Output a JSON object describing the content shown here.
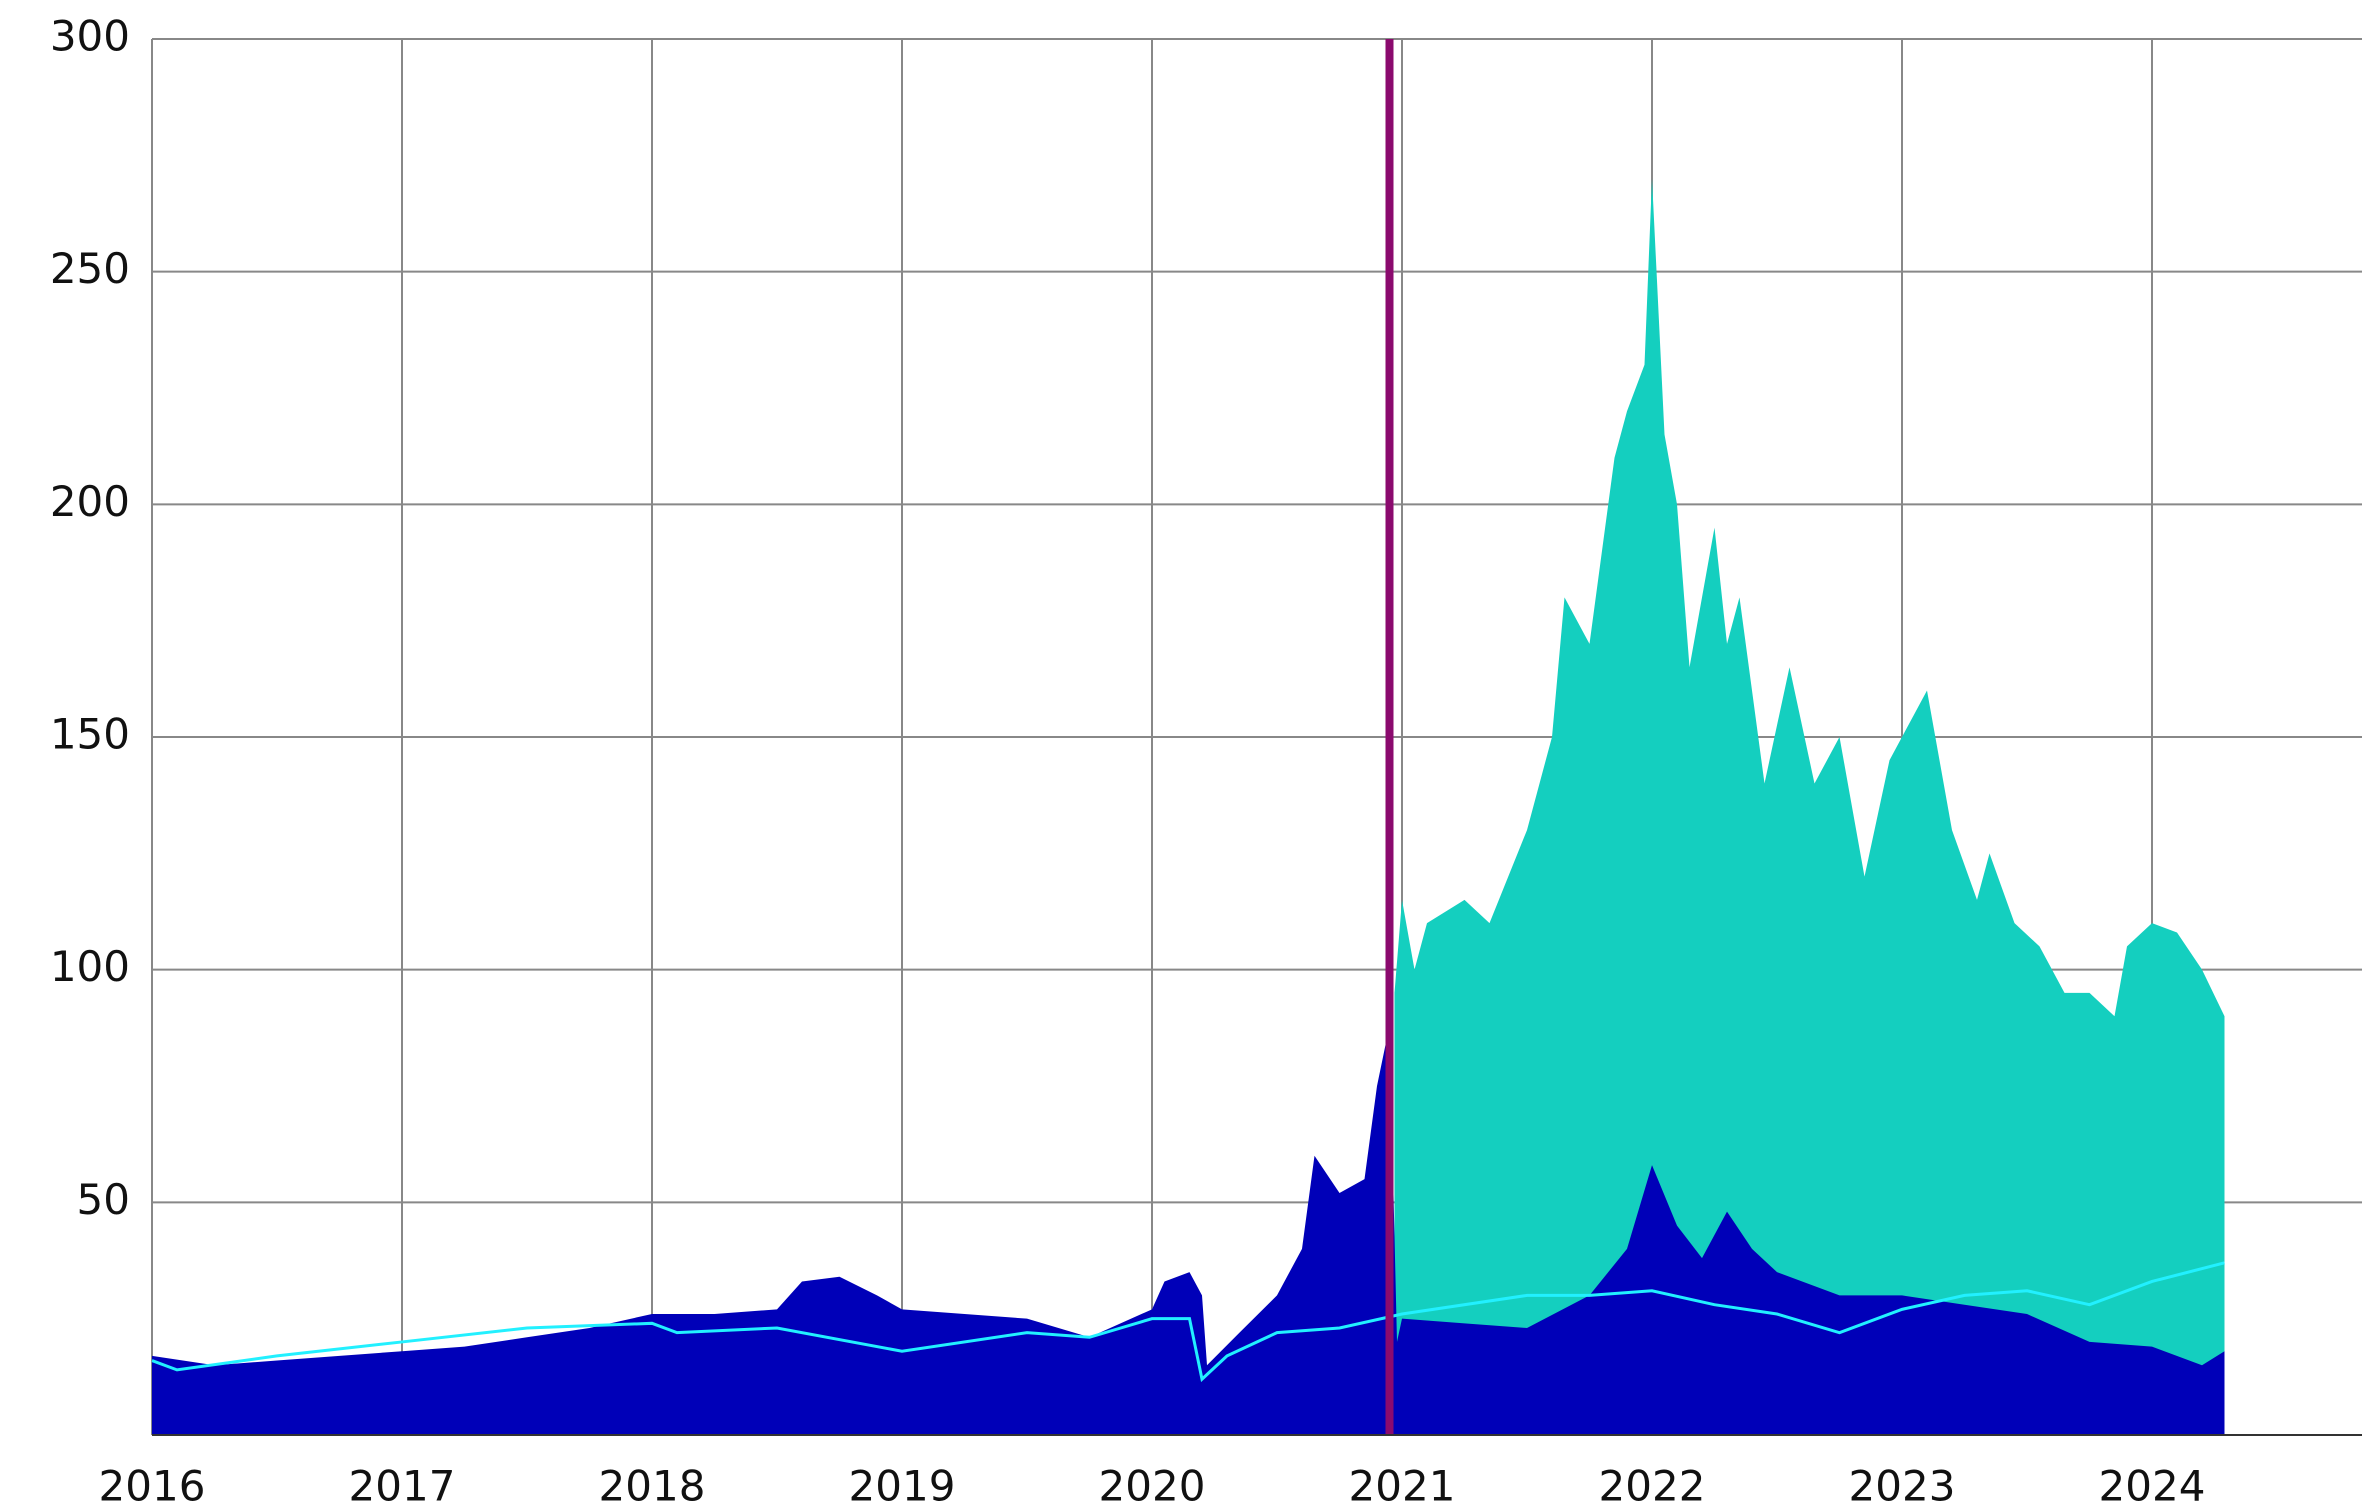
{
  "chart_data": {
    "type": "area",
    "xlim": [
      2016,
      2024.84
    ],
    "xticks": [
      2016,
      2017,
      2018,
      2019,
      2020,
      2021,
      2022,
      2023,
      2024
    ],
    "ylim": [
      0,
      300
    ],
    "yticks": [
      50,
      100,
      150,
      200,
      250,
      300
    ],
    "grid": true,
    "vline": {
      "x": 2020.95,
      "color": "#8b0a6e"
    },
    "series": [
      {
        "color": "#14cfbf",
        "kind": "area",
        "x": [
          2020.97,
          2021.0,
          2021.05,
          2021.1,
          2021.25,
          2021.35,
          2021.5,
          2021.6,
          2021.65,
          2021.75,
          2021.85,
          2021.9,
          2021.97,
          2022.0,
          2022.05,
          2022.1,
          2022.15,
          2022.25,
          2022.3,
          2022.35,
          2022.45,
          2022.55,
          2022.65,
          2022.75,
          2022.85,
          2022.95,
          2023.05,
          2023.1,
          2023.2,
          2023.3,
          2023.35,
          2023.45,
          2023.55,
          2023.65,
          2023.75,
          2023.85,
          2023.9,
          2024.0,
          2024.1,
          2024.2,
          2024.29
        ],
        "values": [
          95,
          115,
          100,
          110,
          115,
          110,
          130,
          150,
          180,
          170,
          210,
          220,
          230,
          270,
          215,
          200,
          165,
          195,
          170,
          180,
          140,
          165,
          140,
          150,
          120,
          145,
          155,
          160,
          130,
          115,
          125,
          110,
          105,
          95,
          95,
          90,
          105,
          110,
          108,
          100,
          90
        ]
      },
      {
        "color": "#0000b8",
        "kind": "area",
        "x": [
          2016.0,
          2016.25,
          2016.5,
          2016.75,
          2017.0,
          2017.25,
          2017.5,
          2017.75,
          2018.0,
          2018.25,
          2018.5,
          2018.6,
          2018.75,
          2018.9,
          2019.0,
          2019.25,
          2019.5,
          2019.75,
          2020.0,
          2020.05,
          2020.15,
          2020.2,
          2020.22,
          2020.35,
          2020.5,
          2020.6,
          2020.65,
          2020.75,
          2020.85,
          2020.9,
          2020.95,
          2020.98,
          2021.0,
          2021.25,
          2021.5,
          2021.75,
          2021.9,
          2022.0,
          2022.1,
          2022.2,
          2022.3,
          2022.4,
          2022.5,
          2022.75,
          2023.0,
          2023.25,
          2023.5,
          2023.75,
          2024.0,
          2024.2,
          2024.29
        ],
        "values": [
          17,
          15,
          16,
          17,
          18,
          19,
          21,
          23,
          26,
          26,
          27,
          33,
          34,
          30,
          27,
          26,
          25,
          21,
          27,
          33,
          35,
          30,
          15,
          22,
          30,
          40,
          60,
          52,
          55,
          75,
          88,
          20,
          25,
          24,
          23,
          30,
          40,
          58,
          45,
          38,
          48,
          40,
          35,
          30,
          30,
          28,
          26,
          20,
          19,
          15,
          18
        ]
      },
      {
        "color": "#22f0ff",
        "kind": "line",
        "x": [
          2016.0,
          2016.1,
          2016.5,
          2017.0,
          2017.5,
          2018.0,
          2018.1,
          2018.5,
          2019.0,
          2019.5,
          2019.75,
          2020.0,
          2020.15,
          2020.2,
          2020.3,
          2020.5,
          2020.75,
          2021.0,
          2021.5,
          2021.75,
          2022.0,
          2022.25,
          2022.5,
          2022.75,
          2023.0,
          2023.25,
          2023.5,
          2023.75,
          2024.0,
          2024.29
        ],
        "values": [
          16,
          14,
          17,
          20,
          23,
          24,
          22,
          23,
          18,
          22,
          21,
          25,
          25,
          12,
          17,
          22,
          23,
          26,
          30,
          30,
          31,
          28,
          26,
          22,
          27,
          30,
          31,
          28,
          33,
          37
        ]
      }
    ]
  }
}
